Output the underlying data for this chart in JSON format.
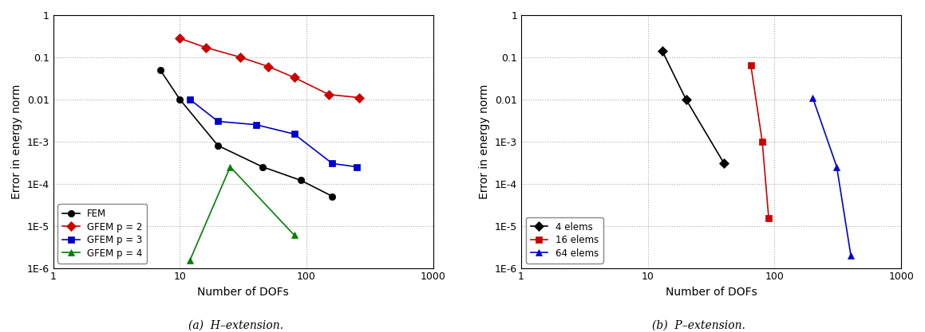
{
  "plot_a": {
    "xlabel": "Number of DOFs",
    "ylabel": "Error in energy norm",
    "xlim": [
      1,
      1000
    ],
    "ylim": [
      1e-06,
      1
    ],
    "legend_loc": "lower left",
    "series": [
      {
        "label": "FEM",
        "color": "#000000",
        "marker": "o",
        "markersize": 6,
        "x": [
          7,
          10,
          20,
          45,
          90,
          160
        ],
        "y": [
          0.05,
          0.01,
          0.0008,
          0.00025,
          0.00012,
          5e-05
        ]
      },
      {
        "label": "GFEM p = 2",
        "color": "#cc0000",
        "marker": "D",
        "markersize": 6,
        "x": [
          10,
          16,
          30,
          50,
          80,
          150,
          260
        ],
        "y": [
          0.28,
          0.17,
          0.1,
          0.06,
          0.033,
          0.013,
          0.011
        ]
      },
      {
        "label": "GFEM p = 3",
        "color": "#0000cc",
        "marker": "s",
        "markersize": 6,
        "x": [
          12,
          20,
          40,
          80,
          160,
          250
        ],
        "y": [
          0.01,
          0.003,
          0.0025,
          0.0015,
          0.0003,
          0.00025
        ]
      },
      {
        "label": "GFEM p = 4",
        "color": "#008000",
        "marker": "^",
        "markersize": 6,
        "x": [
          12,
          25,
          80
        ],
        "y": [
          1.5e-06,
          0.00025,
          6e-06
        ]
      }
    ]
  },
  "plot_b": {
    "xlabel": "Number of DOFs",
    "ylabel": "Error in energy norm",
    "xlim": [
      1,
      1000
    ],
    "ylim": [
      1e-06,
      1
    ],
    "legend_loc": "lower left",
    "series": [
      {
        "label": "4 elems",
        "color": "#000000",
        "marker": "D",
        "markersize": 6,
        "x": [
          13,
          20,
          40
        ],
        "y": [
          0.14,
          0.01,
          0.0003
        ]
      },
      {
        "label": "16 elems",
        "color": "#cc0000",
        "marker": "s",
        "markersize": 6,
        "x": [
          65,
          80,
          90
        ],
        "y": [
          0.065,
          0.001,
          1.5e-05
        ]
      },
      {
        "label": "64 elems",
        "color": "#0000cc",
        "marker": "^",
        "markersize": 6,
        "x": [
          200,
          310,
          400
        ],
        "y": [
          0.011,
          0.00025,
          2e-06
        ]
      }
    ]
  },
  "caption_a": "(a)  H–extension.",
  "caption_b": "(b)  P–extension.",
  "yticks": [
    1e-06,
    1e-05,
    0.0001,
    0.001,
    0.01,
    0.1,
    1
  ],
  "ylabels": [
    "1E-6",
    "1E-5",
    "1E-4",
    "1E-3",
    "0.01",
    "0.1",
    "1"
  ],
  "xticks": [
    1,
    10,
    100,
    1000
  ],
  "xlabels": [
    "1",
    "10",
    "100",
    "1000"
  ]
}
